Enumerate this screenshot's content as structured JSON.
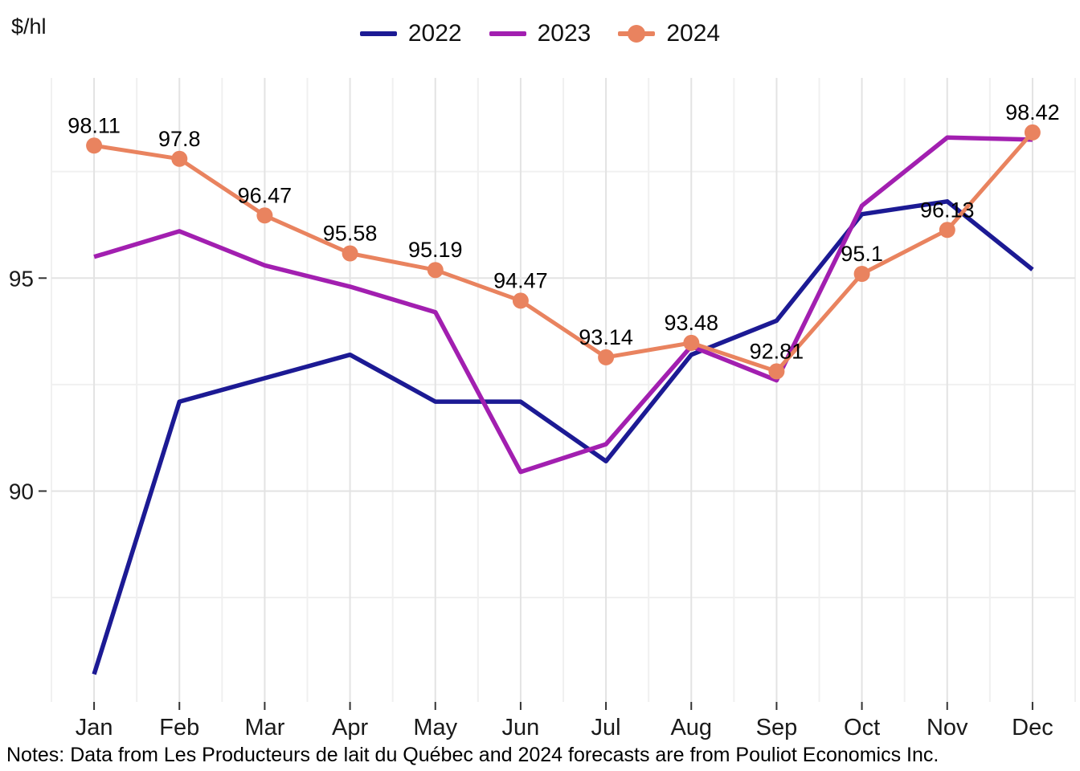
{
  "header": {
    "y_axis_unit": "$/hl"
  },
  "notes": "Notes: Data from Les Producteurs de lait du Québec and 2024 forecasts are from Pouliot Economics Inc.",
  "colors": {
    "background": "#ffffff",
    "grid_major": "#e3e3e3",
    "grid_minor": "#f0f0f0",
    "tick": "#333333",
    "axis_text": "#1a1a1a",
    "point_label_text": "#000000",
    "series_2022": "#1c1a94",
    "series_2023": "#a21fb0",
    "series_2024": "#e9835f"
  },
  "chart_data": {
    "type": "line",
    "title": "",
    "ylabel": "$/hl",
    "xlabel": "",
    "legend_position": "top",
    "grid": "major+minor",
    "categories": [
      "Jan",
      "Feb",
      "Mar",
      "Apr",
      "May",
      "Jun",
      "Jul",
      "Aug",
      "Sep",
      "Oct",
      "Nov",
      "Dec"
    ],
    "y_axis": {
      "ylim": [
        85.05,
        99.7
      ],
      "tick_values": [
        90,
        95
      ],
      "tick_labels": [
        "90",
        "95"
      ],
      "minor_gridlines": [
        85,
        87.5,
        92.5,
        97.5
      ]
    },
    "series": [
      {
        "name": "2022",
        "color": "#1c1a94",
        "marker": false,
        "line_width": 5.5,
        "values": [
          85.7,
          92.1,
          92.65,
          93.2,
          92.1,
          92.1,
          90.7,
          93.2,
          94.0,
          96.5,
          96.8,
          95.2
        ]
      },
      {
        "name": "2023",
        "color": "#a21fb0",
        "marker": false,
        "line_width": 5.5,
        "values": [
          95.5,
          96.1,
          95.3,
          94.8,
          94.2,
          90.45,
          91.1,
          93.4,
          92.6,
          96.7,
          98.3,
          98.25
        ]
      },
      {
        "name": "2024",
        "color": "#e9835f",
        "marker": true,
        "marker_radius": 10,
        "line_width": 5,
        "values": [
          98.11,
          97.8,
          96.47,
          95.58,
          95.19,
          94.47,
          93.14,
          93.48,
          92.81,
          95.1,
          96.13,
          98.42
        ],
        "point_labels": [
          "98.11",
          "97.8",
          "96.47",
          "95.58",
          "95.19",
          "94.47",
          "93.14",
          "93.48",
          "92.81",
          "95.1",
          "96.13",
          "98.42"
        ]
      }
    ]
  }
}
